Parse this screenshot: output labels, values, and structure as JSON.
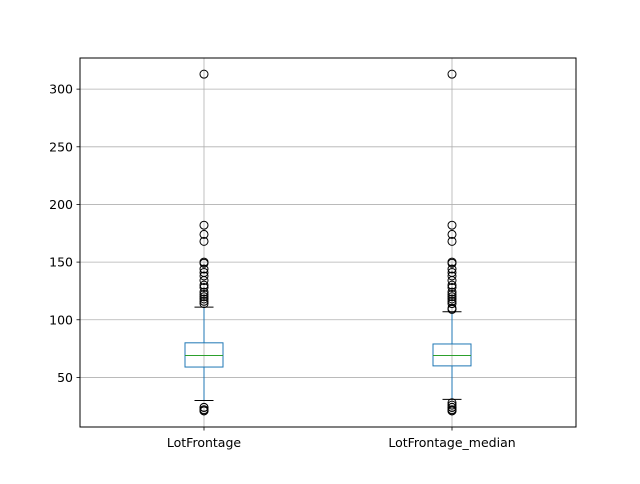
{
  "chart_data": {
    "type": "box",
    "title": "",
    "xlabel": "",
    "ylabel": "",
    "ylim": [
      7,
      327
    ],
    "grid": true,
    "yticks": [
      50,
      100,
      150,
      200,
      250,
      300
    ],
    "categories": [
      "LotFrontage",
      "LotFrontage_median"
    ],
    "series": [
      {
        "name": "LotFrontage",
        "q1": 59,
        "median": 69,
        "q3": 80,
        "whisker_low": 30,
        "whisker_high": 111,
        "outliers": [
          21,
          21,
          22,
          24,
          24,
          114,
          116,
          118,
          120,
          122,
          124,
          128,
          130,
          134,
          138,
          141,
          144,
          149,
          150,
          168,
          174,
          182,
          313
        ]
      },
      {
        "name": "LotFrontage_median",
        "q1": 60,
        "median": 69,
        "q3": 79,
        "whisker_low": 31,
        "whisker_high": 107,
        "outliers": [
          21,
          21,
          22,
          24,
          24,
          26,
          28,
          109,
          110,
          114,
          116,
          118,
          120,
          122,
          124,
          128,
          130,
          134,
          138,
          141,
          144,
          149,
          150,
          168,
          174,
          182,
          313
        ]
      }
    ],
    "colors": {
      "box": "#1f77b4",
      "median": "#2ca02c",
      "flier": "#000000",
      "grid": "#b0b0b0",
      "axis": "#000000"
    }
  }
}
